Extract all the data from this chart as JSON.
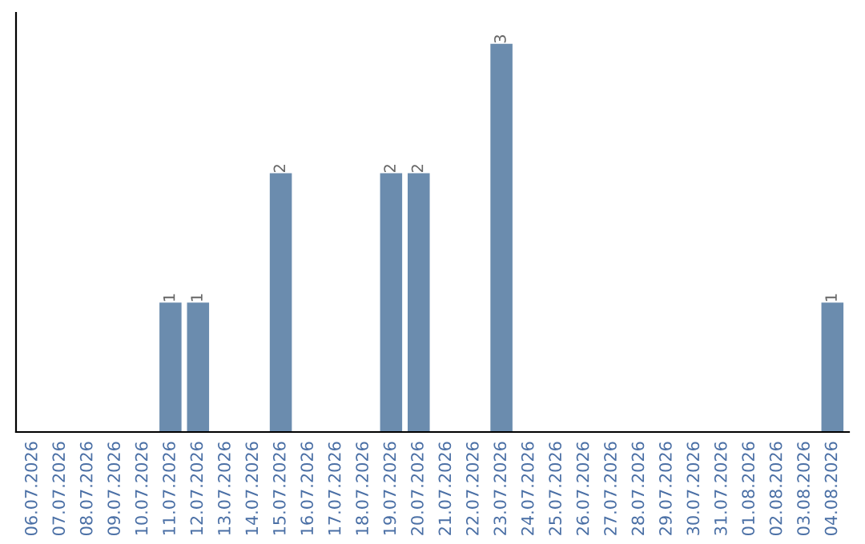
{
  "chart_data": {
    "type": "bar",
    "categories": [
      "06.07.2026",
      "07.07.2026",
      "08.07.2026",
      "09.07.2026",
      "10.07.2026",
      "11.07.2026",
      "12.07.2026",
      "13.07.2026",
      "14.07.2026",
      "15.07.2026",
      "16.07.2026",
      "17.07.2026",
      "18.07.2026",
      "19.07.2026",
      "20.07.2026",
      "21.07.2026",
      "22.07.2026",
      "23.07.2026",
      "24.07.2026",
      "25.07.2026",
      "26.07.2026",
      "27.07.2026",
      "28.07.2026",
      "29.07.2026",
      "30.07.2026",
      "31.07.2026",
      "01.08.2026",
      "02.08.2026",
      "03.08.2026",
      "04.08.2026"
    ],
    "values": [
      0,
      0,
      0,
      0,
      0,
      1,
      1,
      0,
      0,
      2,
      0,
      0,
      0,
      2,
      2,
      0,
      0,
      3,
      0,
      0,
      0,
      0,
      0,
      0,
      0,
      0,
      0,
      0,
      0,
      1
    ],
    "value_labels": [
      null,
      null,
      null,
      null,
      null,
      "1",
      "1",
      null,
      null,
      "2",
      null,
      null,
      null,
      "2",
      "2",
      null,
      null,
      "3",
      null,
      null,
      null,
      null,
      null,
      null,
      null,
      null,
      null,
      null,
      null,
      "1"
    ],
    "color": "#6b8cae"
  }
}
